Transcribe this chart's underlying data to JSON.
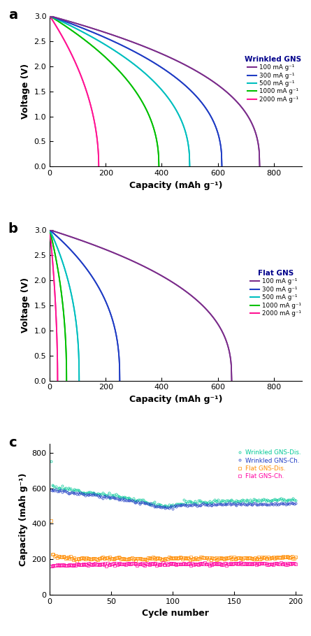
{
  "panel_a_title": "Wrinkled GNS",
  "panel_b_title": "Flat GNS",
  "panel_c_xlabel": "Cycle number",
  "panel_c_ylabel": "Capacity (mAh g⁻¹)",
  "ab_xlabel": "Capacity (mAh g⁻¹)",
  "ab_ylabel": "Voltage (V)",
  "colors_list": [
    "#7B2D8B",
    "#1F3CC4",
    "#00BFBF",
    "#00C000",
    "#FF1493"
  ],
  "legend_labels": [
    "100 mA g⁻¹",
    "300 mA g⁻¹",
    "500 mA g⁻¹",
    "1000 mA g⁻¹",
    "2000 mA g⁻¹"
  ],
  "wrinkled_dis_caps": [
    750,
    615,
    500,
    390,
    175
  ],
  "wrinkled_ch_caps": [
    750,
    615,
    500,
    390,
    175
  ],
  "flat_dis_caps": [
    650,
    250,
    105,
    60,
    28
  ],
  "flat_ch_caps": [
    650,
    250,
    105,
    60,
    28
  ],
  "cycle_colors": {
    "wrinkled_dis": "#00C896",
    "wrinkled_ch": "#1F3CC4",
    "flat_dis": "#FF8C00",
    "flat_ch": "#FF00A0"
  }
}
